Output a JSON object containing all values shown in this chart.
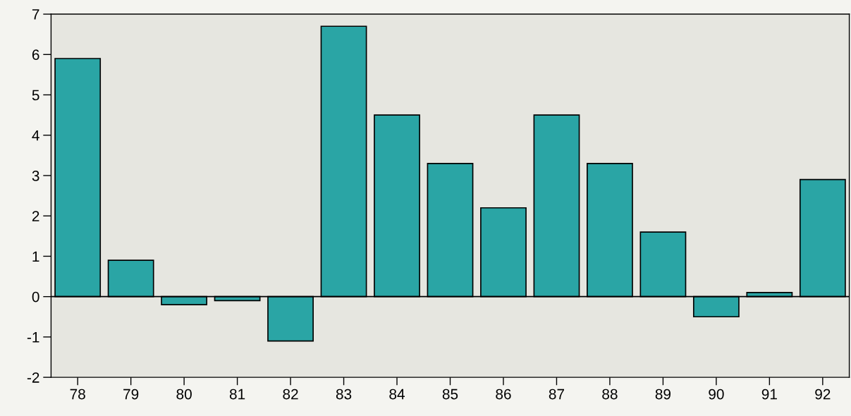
{
  "chart_data": {
    "type": "bar",
    "categories": [
      "78",
      "79",
      "80",
      "81",
      "82",
      "83",
      "84",
      "85",
      "86",
      "87",
      "88",
      "89",
      "90",
      "91",
      "92"
    ],
    "values": [
      5.9,
      0.9,
      -0.2,
      -0.1,
      -1.1,
      6.7,
      4.5,
      3.3,
      2.2,
      4.5,
      3.3,
      1.6,
      -0.5,
      0.1,
      2.9
    ],
    "color": "#2aa5a5",
    "ylim": [
      -2,
      7
    ],
    "yticks": [
      -2,
      -1,
      0,
      1,
      2,
      3,
      4,
      5,
      6,
      7
    ],
    "grid": false,
    "legend": false,
    "ref_lines": [
      {
        "axis": "y",
        "value": 0,
        "color": "#000000"
      }
    ]
  }
}
